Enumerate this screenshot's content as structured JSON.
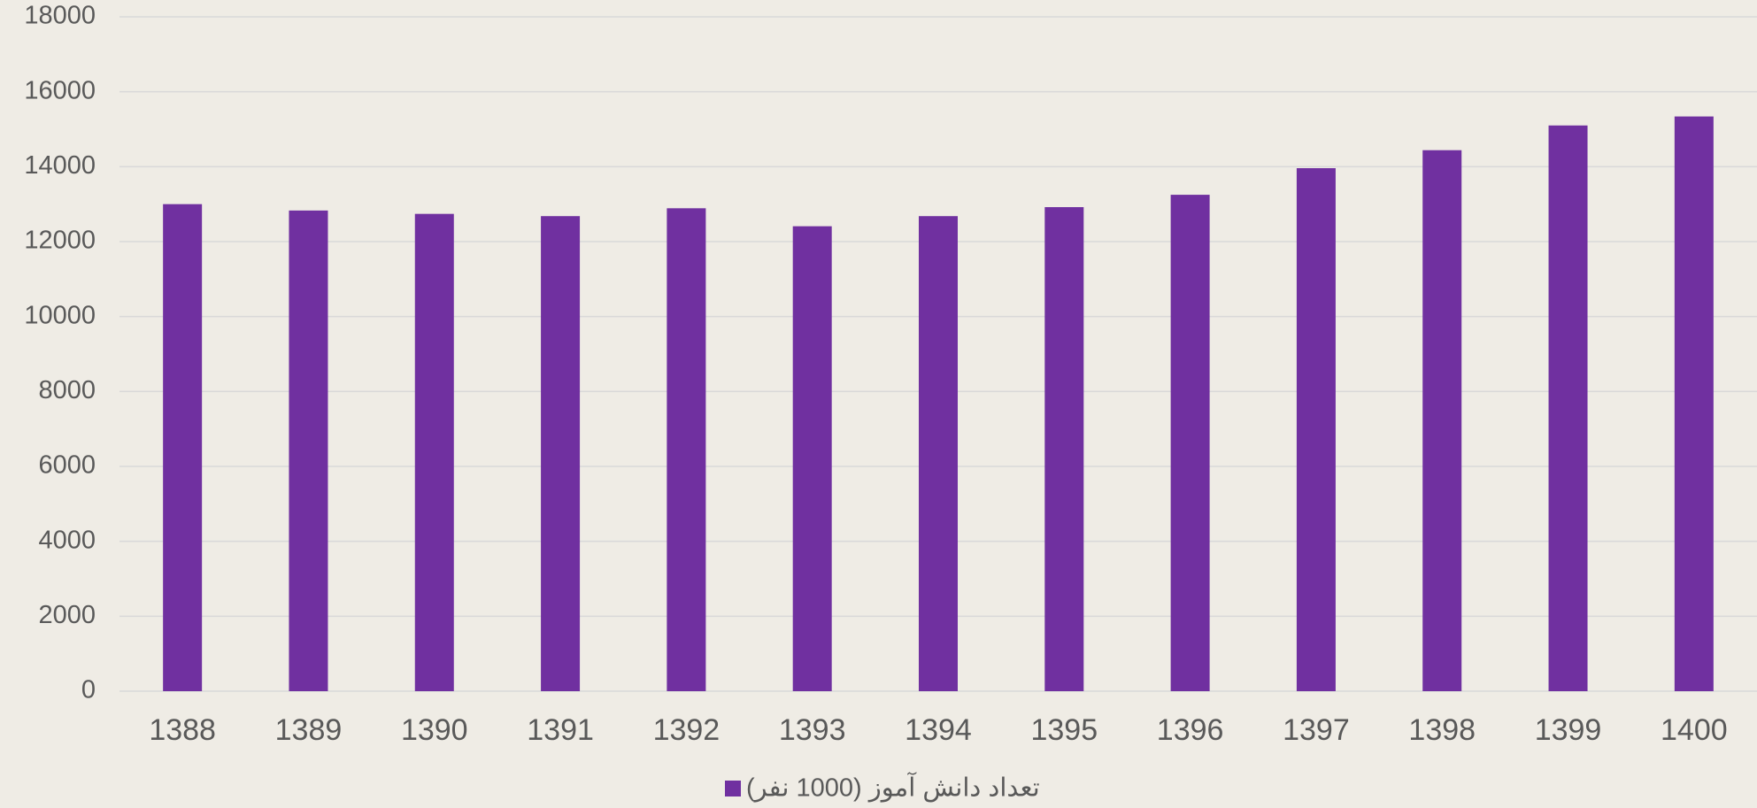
{
  "chart_data": {
    "type": "bar",
    "categories": [
      "1388",
      "1389",
      "1390",
      "1391",
      "1392",
      "1393",
      "1394",
      "1395",
      "1396",
      "1397",
      "1398",
      "1399",
      "1400"
    ],
    "series": [
      {
        "name": "تعداد دانش آموز (1000 نفر)",
        "color": "#7030a0",
        "values": [
          13000,
          12830,
          12740,
          12680,
          12890,
          12410,
          12680,
          12920,
          13250,
          13960,
          14440,
          15100,
          15340
        ]
      }
    ],
    "ylim": [
      0,
      18000
    ],
    "yticks": [
      0,
      2000,
      4000,
      6000,
      8000,
      10000,
      12000,
      14000,
      16000,
      18000
    ],
    "grid": true,
    "legend": "bottom"
  }
}
